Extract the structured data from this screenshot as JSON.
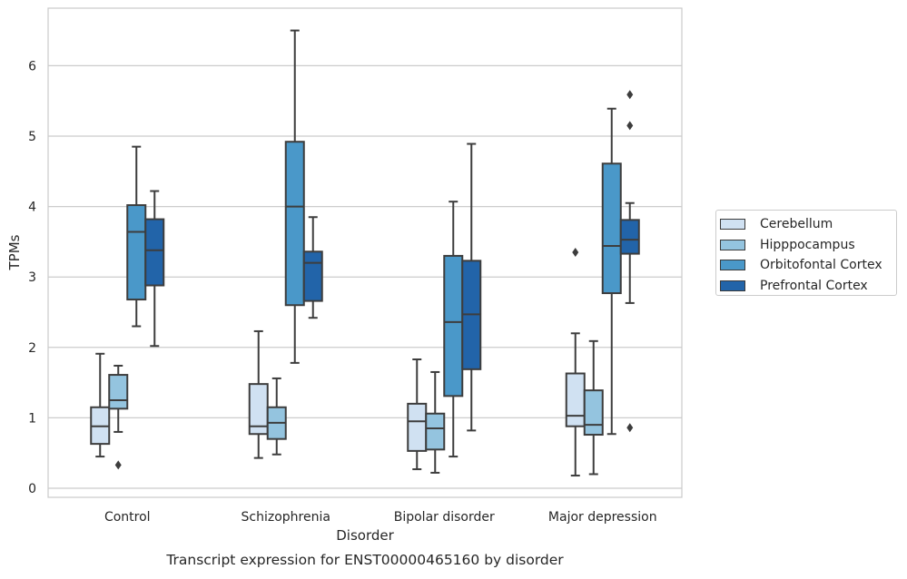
{
  "chart_data": {
    "type": "box",
    "title": "Transcript expression for ENST00000465160 by disorder",
    "xlabel": "Disorder",
    "ylabel": "TPMs",
    "ylim": [
      -0.13,
      6.85
    ],
    "yticks": [
      0,
      1,
      2,
      3,
      4,
      5,
      6
    ],
    "ytick_labels": [
      "0",
      "1",
      "2",
      "3",
      "4",
      "5",
      "6"
    ],
    "categories": [
      "Control",
      "Schizophrenia",
      "Bipolar disorder",
      "Major depression"
    ],
    "grid": true,
    "legend_position": "right",
    "series": [
      {
        "name": "Cerebellum",
        "color": "#d0e1f2",
        "boxes": [
          {
            "whislo": 0.45,
            "q1": 0.63,
            "med": 0.88,
            "q3": 1.15,
            "whishi": 1.91,
            "fliers": []
          },
          {
            "whislo": 0.43,
            "q1": 0.77,
            "med": 0.88,
            "q3": 1.48,
            "whishi": 2.23,
            "fliers": []
          },
          {
            "whislo": 0.27,
            "q1": 0.53,
            "med": 0.95,
            "q3": 1.2,
            "whishi": 1.83,
            "fliers": []
          },
          {
            "whislo": 0.18,
            "q1": 0.88,
            "med": 1.03,
            "q3": 1.63,
            "whishi": 2.2,
            "fliers": [
              3.35
            ]
          }
        ]
      },
      {
        "name": "Hipppocampus",
        "color": "#94c4df",
        "boxes": [
          {
            "whislo": 0.8,
            "q1": 1.13,
            "med": 1.25,
            "q3": 1.61,
            "whishi": 1.74,
            "fliers": [
              0.33
            ]
          },
          {
            "whislo": 0.48,
            "q1": 0.7,
            "med": 0.93,
            "q3": 1.15,
            "whishi": 1.56,
            "fliers": []
          },
          {
            "whislo": 0.22,
            "q1": 0.55,
            "med": 0.85,
            "q3": 1.06,
            "whishi": 1.65,
            "fliers": []
          },
          {
            "whislo": 0.2,
            "q1": 0.76,
            "med": 0.9,
            "q3": 1.39,
            "whishi": 2.09,
            "fliers": []
          }
        ]
      },
      {
        "name": "Orbitofontal Cortex",
        "color": "#4a98c9",
        "boxes": [
          {
            "whislo": 2.3,
            "q1": 2.68,
            "med": 3.64,
            "q3": 4.02,
            "whishi": 4.85,
            "fliers": []
          },
          {
            "whislo": 1.78,
            "q1": 2.6,
            "med": 4.0,
            "q3": 4.92,
            "whishi": 6.5,
            "fliers": []
          },
          {
            "whislo": 0.45,
            "q1": 1.31,
            "med": 2.36,
            "q3": 3.3,
            "whishi": 4.07,
            "fliers": []
          },
          {
            "whislo": 0.77,
            "q1": 2.77,
            "med": 3.44,
            "q3": 4.61,
            "whishi": 5.39,
            "fliers": []
          }
        ]
      },
      {
        "name": "Prefrontal Cortex",
        "color": "#2264a9",
        "boxes": [
          {
            "whislo": 2.02,
            "q1": 2.88,
            "med": 3.38,
            "q3": 3.82,
            "whishi": 4.22,
            "fliers": []
          },
          {
            "whislo": 2.42,
            "q1": 2.66,
            "med": 3.2,
            "q3": 3.36,
            "whishi": 3.85,
            "fliers": []
          },
          {
            "whislo": 0.82,
            "q1": 1.69,
            "med": 2.47,
            "q3": 3.23,
            "whishi": 4.89,
            "fliers": []
          },
          {
            "whislo": 2.63,
            "q1": 3.33,
            "med": 3.53,
            "q3": 3.81,
            "whishi": 4.05,
            "fliers": [
              0.86,
              5.15,
              5.59
            ]
          }
        ]
      }
    ]
  }
}
